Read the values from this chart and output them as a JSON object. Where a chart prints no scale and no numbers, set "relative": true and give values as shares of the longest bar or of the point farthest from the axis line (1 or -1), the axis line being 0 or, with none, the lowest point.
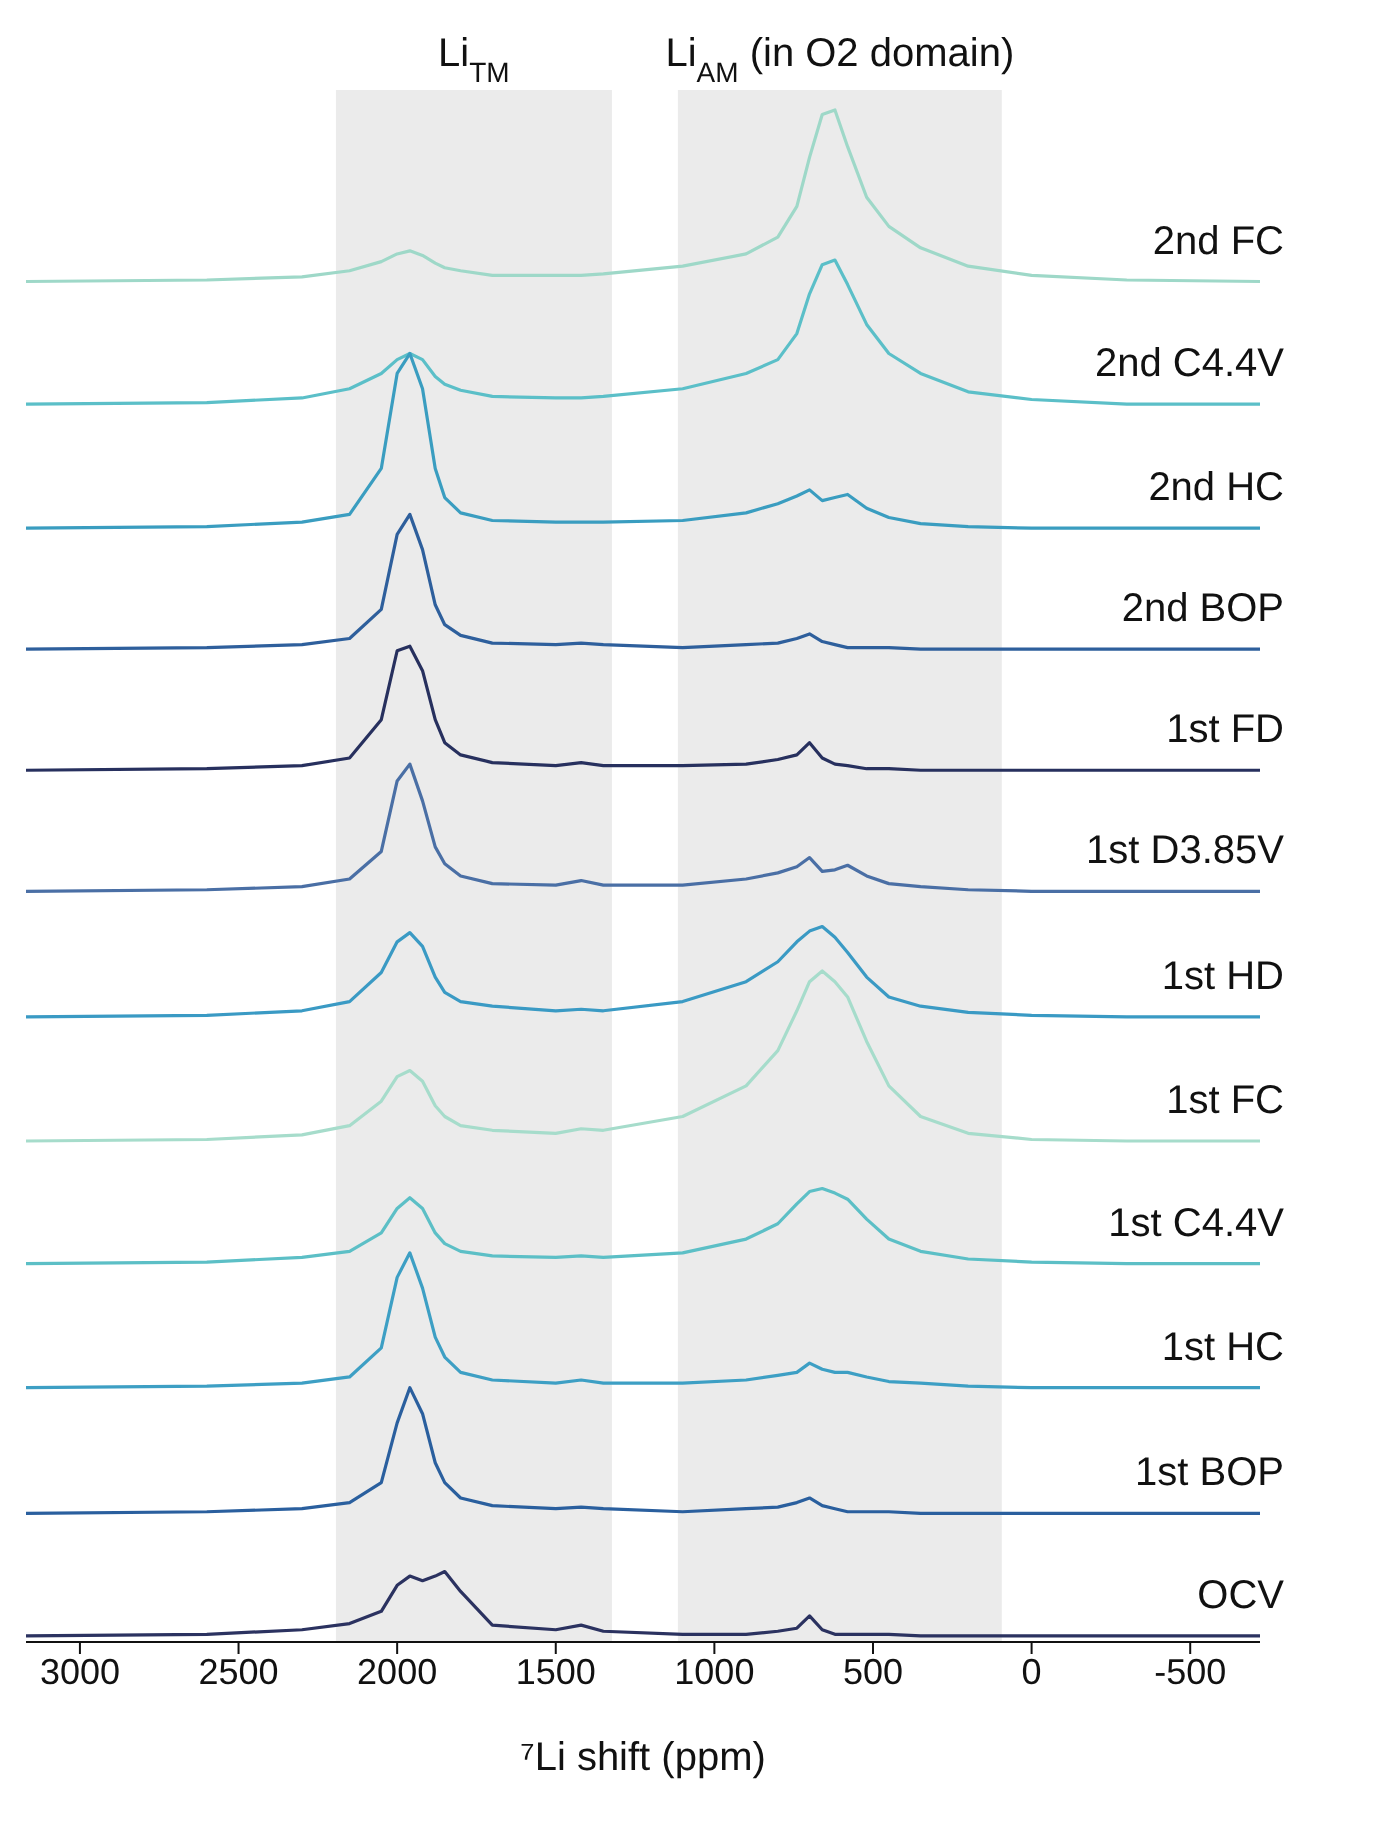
{
  "chart_data": {
    "type": "line",
    "relative": true,
    "xlabel": "⁷Li shift (ppm)",
    "xlim": [
      3170,
      -720
    ],
    "xticks": [
      3000,
      2500,
      2000,
      1500,
      1000,
      500,
      0,
      -500
    ],
    "x": [
      3170,
      2600,
      2300,
      2150,
      2050,
      2000,
      1960,
      1920,
      1880,
      1850,
      1800,
      1700,
      1500,
      1420,
      1350,
      1100,
      900,
      800,
      740,
      700,
      660,
      620,
      580,
      520,
      450,
      350,
      200,
      0,
      -300,
      -720
    ],
    "bands": [
      {
        "axis": "x",
        "from": 2193,
        "to": 1323,
        "label": "Li$_{TM}$",
        "color": "#ebebeb"
      },
      {
        "axis": "x",
        "from": 1115,
        "to": 94,
        "label": "Li$_{AM}$ (in O2 domain)",
        "color": "#ebebeb"
      }
    ],
    "series": [
      {
        "name": "2nd FC",
        "color": "#9ed8c8",
        "values": [
          0.888,
          0.889,
          0.891,
          0.895,
          0.901,
          0.906,
          0.908,
          0.905,
          0.9,
          0.897,
          0.895,
          0.892,
          0.892,
          0.892,
          0.893,
          0.898,
          0.906,
          0.917,
          0.937,
          0.969,
          0.997,
          1.0,
          0.976,
          0.943,
          0.924,
          0.91,
          0.898,
          0.892,
          0.889,
          0.888
        ]
      },
      {
        "name": "2nd C4.4V",
        "color": "#5bbfc8",
        "values": [
          0.808,
          0.809,
          0.812,
          0.818,
          0.828,
          0.837,
          0.841,
          0.837,
          0.826,
          0.821,
          0.817,
          0.813,
          0.812,
          0.812,
          0.813,
          0.818,
          0.828,
          0.837,
          0.854,
          0.88,
          0.899,
          0.902,
          0.886,
          0.86,
          0.841,
          0.828,
          0.816,
          0.811,
          0.808,
          0.808
        ]
      },
      {
        "name": "2nd HC",
        "color": "#3a9dc0",
        "values": [
          0.727,
          0.728,
          0.731,
          0.736,
          0.766,
          0.828,
          0.841,
          0.818,
          0.766,
          0.747,
          0.737,
          0.732,
          0.731,
          0.731,
          0.731,
          0.732,
          0.737,
          0.743,
          0.748,
          0.752,
          0.745,
          0.747,
          0.749,
          0.74,
          0.734,
          0.73,
          0.728,
          0.727,
          0.727,
          0.727
        ]
      },
      {
        "name": "2nd BOP",
        "color": "#2e5f9c",
        "values": [
          0.648,
          0.649,
          0.651,
          0.655,
          0.674,
          0.723,
          0.736,
          0.713,
          0.677,
          0.664,
          0.657,
          0.652,
          0.651,
          0.652,
          0.651,
          0.649,
          0.651,
          0.652,
          0.655,
          0.658,
          0.653,
          0.651,
          0.649,
          0.649,
          0.649,
          0.648,
          0.648,
          0.648,
          0.648,
          0.648
        ]
      },
      {
        "name": "1st FD",
        "color": "#27305e",
        "values": [
          0.569,
          0.57,
          0.572,
          0.577,
          0.602,
          0.647,
          0.65,
          0.634,
          0.602,
          0.587,
          0.579,
          0.574,
          0.572,
          0.574,
          0.572,
          0.572,
          0.573,
          0.576,
          0.579,
          0.587,
          0.577,
          0.573,
          0.572,
          0.57,
          0.57,
          0.569,
          0.569,
          0.569,
          0.569,
          0.569
        ]
      },
      {
        "name": "1st D3.85V",
        "color": "#4a6fa5",
        "values": [
          0.49,
          0.491,
          0.493,
          0.498,
          0.516,
          0.562,
          0.573,
          0.549,
          0.519,
          0.508,
          0.5,
          0.495,
          0.494,
          0.497,
          0.494,
          0.494,
          0.498,
          0.502,
          0.506,
          0.512,
          0.503,
          0.504,
          0.507,
          0.5,
          0.495,
          0.493,
          0.491,
          0.49,
          0.49,
          0.49
        ]
      },
      {
        "name": "1st HD",
        "color": "#3a9ac4",
        "values": [
          0.408,
          0.409,
          0.412,
          0.418,
          0.437,
          0.457,
          0.463,
          0.454,
          0.434,
          0.424,
          0.418,
          0.415,
          0.412,
          0.413,
          0.412,
          0.418,
          0.431,
          0.444,
          0.457,
          0.464,
          0.467,
          0.46,
          0.45,
          0.434,
          0.421,
          0.415,
          0.411,
          0.409,
          0.408,
          0.408
        ]
      },
      {
        "name": "1st FC",
        "color": "#a6dccb",
        "values": [
          0.327,
          0.328,
          0.331,
          0.337,
          0.353,
          0.369,
          0.373,
          0.366,
          0.35,
          0.343,
          0.337,
          0.334,
          0.332,
          0.335,
          0.334,
          0.343,
          0.363,
          0.386,
          0.412,
          0.431,
          0.438,
          0.431,
          0.421,
          0.392,
          0.363,
          0.343,
          0.332,
          0.328,
          0.327,
          0.327
        ]
      },
      {
        "name": "1st C4.4V",
        "color": "#5cbfc6",
        "values": [
          0.247,
          0.248,
          0.251,
          0.255,
          0.267,
          0.283,
          0.29,
          0.283,
          0.267,
          0.26,
          0.255,
          0.252,
          0.251,
          0.252,
          0.251,
          0.254,
          0.263,
          0.273,
          0.286,
          0.294,
          0.296,
          0.293,
          0.289,
          0.276,
          0.263,
          0.255,
          0.25,
          0.248,
          0.247,
          0.247
        ]
      },
      {
        "name": "1st HC",
        "color": "#3d9fc4",
        "values": [
          0.166,
          0.167,
          0.169,
          0.173,
          0.192,
          0.238,
          0.254,
          0.231,
          0.199,
          0.186,
          0.176,
          0.171,
          0.169,
          0.171,
          0.169,
          0.169,
          0.171,
          0.174,
          0.176,
          0.182,
          0.178,
          0.176,
          0.176,
          0.173,
          0.17,
          0.169,
          0.167,
          0.166,
          0.166,
          0.166
        ]
      },
      {
        "name": "1st BOP",
        "color": "#2a5f9e",
        "values": [
          0.084,
          0.085,
          0.087,
          0.091,
          0.104,
          0.143,
          0.166,
          0.149,
          0.117,
          0.104,
          0.094,
          0.089,
          0.087,
          0.088,
          0.087,
          0.085,
          0.087,
          0.088,
          0.091,
          0.094,
          0.089,
          0.087,
          0.085,
          0.085,
          0.085,
          0.084,
          0.084,
          0.084,
          0.084,
          0.084
        ]
      },
      {
        "name": "OCV",
        "color": "#2b3260",
        "values": [
          0.004,
          0.005,
          0.008,
          0.012,
          0.02,
          0.037,
          0.043,
          0.04,
          0.043,
          0.046,
          0.033,
          0.011,
          0.008,
          0.011,
          0.007,
          0.005,
          0.005,
          0.007,
          0.009,
          0.017,
          0.008,
          0.005,
          0.005,
          0.005,
          0.005,
          0.004,
          0.004,
          0.004,
          0.004,
          0.004
        ]
      }
    ]
  }
}
